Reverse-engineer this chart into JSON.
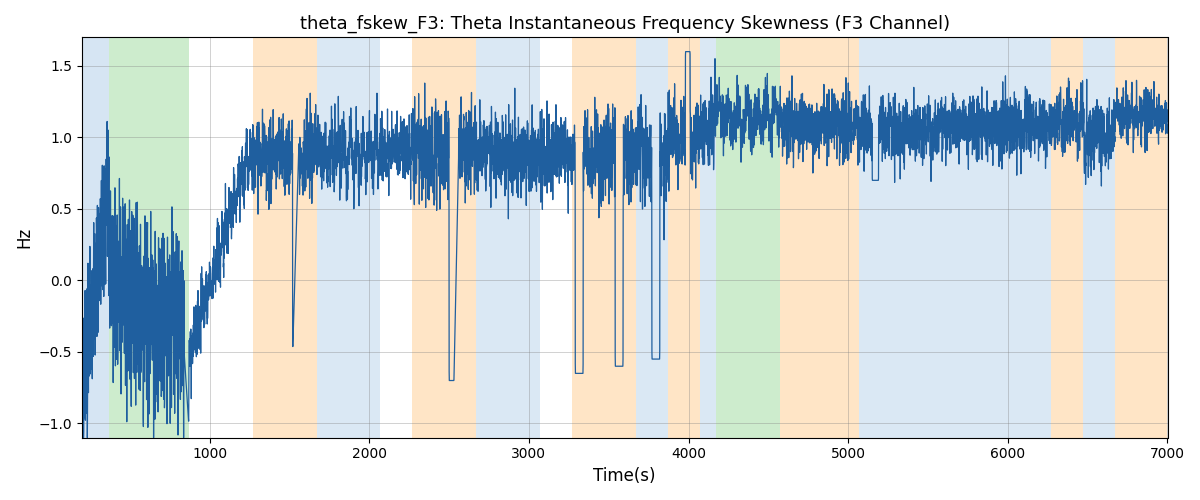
{
  "title": "theta_fskew_F3: Theta Instantaneous Frequency Skewness (F3 Channel)",
  "xlabel": "Time(s)",
  "ylabel": "Hz",
  "xlim": [
    200,
    7000
  ],
  "ylim": [
    -1.1,
    1.7
  ],
  "line_color": "#1f5f9f",
  "line_width": 0.9,
  "bg_regions": [
    {
      "xmin": 200,
      "xmax": 370,
      "color": "#aecde8",
      "alpha": 0.5
    },
    {
      "xmin": 370,
      "xmax": 870,
      "color": "#90d590",
      "alpha": 0.45
    },
    {
      "xmin": 1270,
      "xmax": 1670,
      "color": "#ffd5a0",
      "alpha": 0.6
    },
    {
      "xmin": 1670,
      "xmax": 2070,
      "color": "#aecde8",
      "alpha": 0.45
    },
    {
      "xmin": 2270,
      "xmax": 2670,
      "color": "#ffd5a0",
      "alpha": 0.6
    },
    {
      "xmin": 2670,
      "xmax": 3070,
      "color": "#aecde8",
      "alpha": 0.45
    },
    {
      "xmin": 3270,
      "xmax": 3670,
      "color": "#ffd5a0",
      "alpha": 0.6
    },
    {
      "xmin": 3670,
      "xmax": 3870,
      "color": "#aecde8",
      "alpha": 0.45
    },
    {
      "xmin": 3870,
      "xmax": 4070,
      "color": "#ffd5a0",
      "alpha": 0.6
    },
    {
      "xmin": 4070,
      "xmax": 4170,
      "color": "#aecde8",
      "alpha": 0.45
    },
    {
      "xmin": 4170,
      "xmax": 4570,
      "color": "#90d590",
      "alpha": 0.45
    },
    {
      "xmin": 4570,
      "xmax": 4770,
      "color": "#ffd5a0",
      "alpha": 0.6
    },
    {
      "xmin": 4770,
      "xmax": 5070,
      "color": "#ffd5a0",
      "alpha": 0.6
    },
    {
      "xmin": 5070,
      "xmax": 5570,
      "color": "#aecde8",
      "alpha": 0.45
    },
    {
      "xmin": 5570,
      "xmax": 6270,
      "color": "#aecde8",
      "alpha": 0.45
    },
    {
      "xmin": 6270,
      "xmax": 6470,
      "color": "#ffd5a0",
      "alpha": 0.6
    },
    {
      "xmin": 6470,
      "xmax": 6670,
      "color": "#aecde8",
      "alpha": 0.45
    },
    {
      "xmin": 6670,
      "xmax": 7000,
      "color": "#ffd5a0",
      "alpha": 0.6
    }
  ],
  "yticks": [
    -1.0,
    -0.5,
    0.0,
    0.5,
    1.0,
    1.5
  ],
  "xticks": [
    1000,
    2000,
    3000,
    4000,
    5000,
    6000,
    7000
  ],
  "figsize": [
    12,
    5
  ],
  "dpi": 100
}
